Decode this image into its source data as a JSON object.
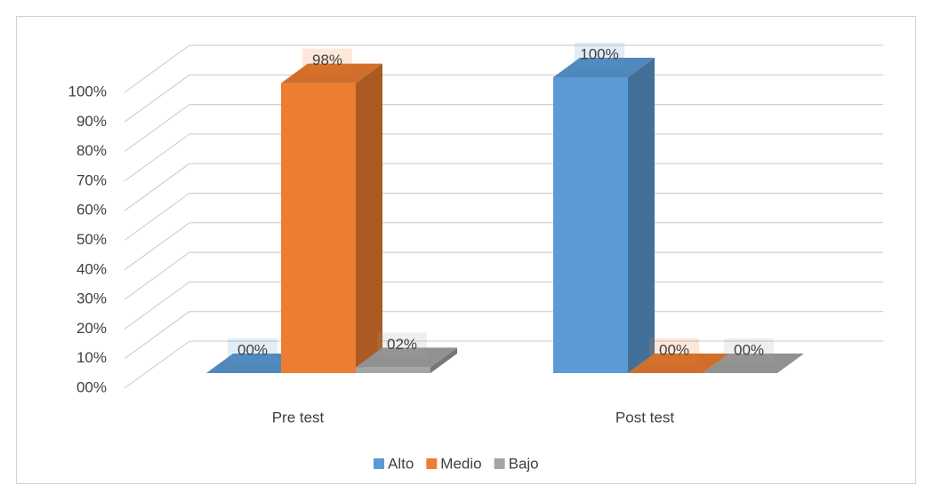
{
  "chart_data": {
    "type": "bar3d",
    "categories": [
      "Pre test",
      "Post test"
    ],
    "series": [
      {
        "name": "Alto",
        "color": "#5b9bd5",
        "values": [
          0,
          100
        ],
        "value_labels": [
          "00%",
          "100%"
        ]
      },
      {
        "name": "Medio",
        "color": "#ed7d31",
        "values": [
          98,
          0
        ],
        "value_labels": [
          "98%",
          "00%"
        ]
      },
      {
        "name": "Bajo",
        "color": "#a5a5a5",
        "values": [
          2,
          0
        ],
        "value_labels": [
          "02%",
          "00%"
        ]
      }
    ],
    "ylim": [
      0,
      100
    ],
    "yticks": [
      {
        "value": 0,
        "label": "00%"
      },
      {
        "value": 10,
        "label": "10%"
      },
      {
        "value": 20,
        "label": "20%"
      },
      {
        "value": 30,
        "label": "30%"
      },
      {
        "value": 40,
        "label": "40%"
      },
      {
        "value": 50,
        "label": "50%"
      },
      {
        "value": 60,
        "label": "60%"
      },
      {
        "value": 70,
        "label": "70%"
      },
      {
        "value": 80,
        "label": "80%"
      },
      {
        "value": 90,
        "label": "90%"
      },
      {
        "value": 100,
        "label": "100%"
      }
    ],
    "grid": true,
    "legend": "bottom"
  }
}
